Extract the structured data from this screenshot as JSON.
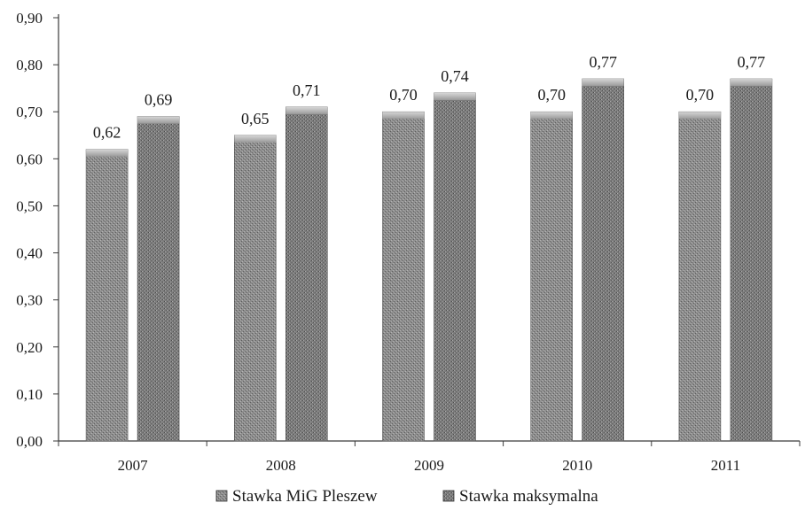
{
  "chart_data": {
    "type": "bar",
    "categories": [
      "2007",
      "2008",
      "2009",
      "2010",
      "2011"
    ],
    "series": [
      {
        "name": "Stawka MiG Pleszew",
        "values": [
          0.62,
          0.65,
          0.7,
          0.7,
          0.7
        ],
        "labels": [
          "0,62",
          "0,65",
          "0,70",
          "0,70",
          "0,70"
        ],
        "color": "#8c8c8c"
      },
      {
        "name": "Stawka maksymalna",
        "values": [
          0.69,
          0.71,
          0.74,
          0.77,
          0.77
        ],
        "labels": [
          "0,69",
          "0,71",
          "0,74",
          "0,77",
          "0,77"
        ],
        "color": "#7a7a7a"
      }
    ],
    "ylim": [
      0,
      0.9
    ],
    "yticks": [
      "0,00",
      "0,10",
      "0,20",
      "0,30",
      "0,40",
      "0,50",
      "0,60",
      "0,70",
      "0,80",
      "0,90"
    ],
    "legend_position": "bottom",
    "grid": false,
    "title": "",
    "xlabel": "",
    "ylabel": ""
  }
}
